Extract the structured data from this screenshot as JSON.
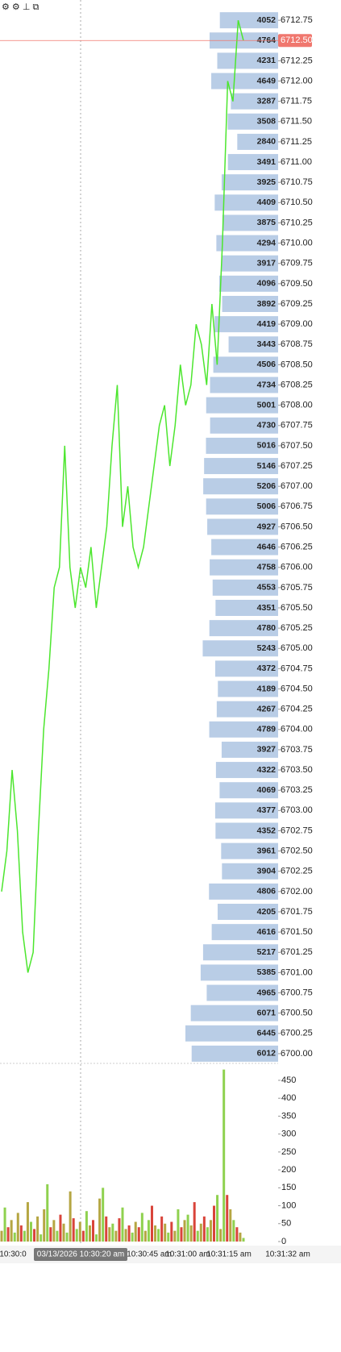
{
  "chart_data": [
    {
      "type": "price",
      "ylim": [
        6699.89,
        6713.0
      ],
      "yticks": [
        {
          "value": 6712.75,
          "label": "6712.75"
        },
        {
          "value": 6712.5,
          "label": "6712.50"
        },
        {
          "value": 6712.25,
          "label": "6712.25"
        },
        {
          "value": 6712,
          "label": "6712.00"
        },
        {
          "value": 6711.75,
          "label": "6711.75"
        },
        {
          "value": 6711.5,
          "label": "6711.50"
        },
        {
          "value": 6711.25,
          "label": "6711.25"
        },
        {
          "value": 6711,
          "label": "6711.00"
        },
        {
          "value": 6710.75,
          "label": "6710.75"
        },
        {
          "value": 6710.5,
          "label": "6710.50"
        },
        {
          "value": 6710.25,
          "label": "6710.25"
        },
        {
          "value": 6710,
          "label": "6710.00"
        },
        {
          "value": 6709.75,
          "label": "6709.75"
        },
        {
          "value": 6709.5,
          "label": "6709.50"
        },
        {
          "value": 6709.25,
          "label": "6709.25"
        },
        {
          "value": 6709,
          "label": "6709.00"
        },
        {
          "value": 6708.75,
          "label": "6708.75"
        },
        {
          "value": 6708.5,
          "label": "6708.50"
        },
        {
          "value": 6708.25,
          "label": "6708.25"
        },
        {
          "value": 6708,
          "label": "6708.00"
        },
        {
          "value": 6707.75,
          "label": "6707.75"
        },
        {
          "value": 6707.5,
          "label": "6707.50"
        },
        {
          "value": 6707.25,
          "label": "6707.25"
        },
        {
          "value": 6707,
          "label": "6707.00"
        },
        {
          "value": 6706.75,
          "label": "6706.75"
        },
        {
          "value": 6706.5,
          "label": "6706.50"
        },
        {
          "value": 6706.25,
          "label": "6706.25"
        },
        {
          "value": 6706,
          "label": "6706.00"
        },
        {
          "value": 6705.75,
          "label": "6705.75"
        },
        {
          "value": 6705.5,
          "label": "6705.50"
        },
        {
          "value": 6705.25,
          "label": "6705.25"
        },
        {
          "value": 6705,
          "label": "6705.00"
        },
        {
          "value": 6704.75,
          "label": "6704.75"
        },
        {
          "value": 6704.5,
          "label": "6704.50"
        },
        {
          "value": 6704.25,
          "label": "6704.25"
        },
        {
          "value": 6704,
          "label": "6704.00"
        },
        {
          "value": 6703.75,
          "label": "6703.75"
        },
        {
          "value": 6703.5,
          "label": "6703.50"
        },
        {
          "value": 6703.25,
          "label": "6703.25"
        },
        {
          "value": 6703,
          "label": "6703.00"
        },
        {
          "value": 6702.75,
          "label": "6702.75"
        },
        {
          "value": 6702.5,
          "label": "6702.50"
        },
        {
          "value": 6702.25,
          "label": "6702.25"
        },
        {
          "value": 6702,
          "label": "6702.00"
        },
        {
          "value": 6701.75,
          "label": "6701.75"
        },
        {
          "value": 6701.5,
          "label": "6701.50"
        },
        {
          "value": 6701.25,
          "label": "6701.25"
        },
        {
          "value": 6701,
          "label": "6701.00"
        },
        {
          "value": 6700.75,
          "label": "6700.75"
        },
        {
          "value": 6700.5,
          "label": "6700.50"
        },
        {
          "value": 6700.25,
          "label": "6700.25"
        },
        {
          "value": 6700,
          "label": "6700.00"
        }
      ],
      "profile_volumes": [
        4052,
        4764,
        4231,
        4649,
        3287,
        3508,
        2840,
        3491,
        3925,
        4409,
        3875,
        4294,
        3917,
        4096,
        3892,
        4419,
        3443,
        4506,
        4734,
        5001,
        4730,
        5016,
        5146,
        5206,
        5006,
        4927,
        4646,
        4758,
        4553,
        4351,
        4780,
        5243,
        4372,
        4189,
        4267,
        4789,
        3927,
        4322,
        4069,
        4377,
        4352,
        3961,
        3904,
        4806,
        4205,
        4616,
        5217,
        5385,
        4965,
        6071,
        6445,
        6012
      ],
      "profile_color": "#b9cde6",
      "current_price": {
        "value": 6712.5,
        "label": "6712.50"
      },
      "current_color": "#f0776e",
      "series": [
        {
          "color": "#4ce62e",
          "values": [
            6702.0,
            6702.5,
            6703.5,
            6702.75,
            6701.5,
            6701.0,
            6701.25,
            6702.75,
            6704.0,
            6704.75,
            6705.75,
            6706.0,
            6707.5,
            6706.0,
            6705.5,
            6706.0,
            6705.75,
            6706.25,
            6705.5,
            6706.0,
            6706.5,
            6707.5,
            6708.25,
            6706.5,
            6707.0,
            6706.25,
            6706.0,
            6706.25,
            6706.75,
            6707.25,
            6707.75,
            6708.0,
            6707.25,
            6707.75,
            6708.5,
            6708.0,
            6708.25,
            6709.0,
            6708.75,
            6708.25,
            6709.25,
            6708.5,
            6710.0,
            6712.0,
            6711.75,
            6712.75,
            6712.5
          ]
        }
      ]
    },
    {
      "type": "bar",
      "ylim": [
        0,
        495
      ],
      "yticks": [
        0,
        50,
        100,
        150,
        200,
        250,
        300,
        350,
        400,
        450
      ],
      "values": [
        30,
        95,
        40,
        60,
        25,
        80,
        45,
        30,
        110,
        55,
        35,
        70,
        20,
        90,
        160,
        40,
        60,
        30,
        75,
        50,
        25,
        140,
        65,
        35,
        55,
        30,
        85,
        45,
        60,
        20,
        120,
        150,
        70,
        40,
        50,
        30,
        65,
        95,
        35,
        45,
        25,
        55,
        40,
        80,
        30,
        60,
        100,
        45,
        35,
        70,
        50,
        25,
        55,
        30,
        90,
        40,
        60,
        75,
        45,
        110,
        30,
        50,
        70,
        40,
        60,
        100,
        130,
        35,
        480,
        130,
        90,
        60,
        40,
        25,
        10
      ],
      "bar_colors": [
        "#b5a642",
        "#8fd14f",
        "#d9443a",
        "#b5a642",
        "#8fd14f",
        "#b5a642",
        "#d9443a",
        "#8fd14f",
        "#b5a642",
        "#8fd14f",
        "#d9443a",
        "#b5a642",
        "#8fd14f",
        "#b5a642",
        "#8fd14f",
        "#d9443a",
        "#b5a642",
        "#8fd14f",
        "#d9443a",
        "#b5a642",
        "#8fd14f",
        "#b5a642",
        "#d9443a",
        "#8fd14f",
        "#b5a642",
        "#d9443a",
        "#8fd14f",
        "#b5a642",
        "#d9443a",
        "#8fd14f",
        "#b5a642",
        "#8fd14f",
        "#d9443a",
        "#b5a642",
        "#8fd14f",
        "#b5a642",
        "#d9443a",
        "#8fd14f",
        "#b5a642",
        "#d9443a",
        "#8fd14f",
        "#b5a642",
        "#d9443a",
        "#8fd14f",
        "#b5a642",
        "#8fd14f",
        "#d9443a",
        "#b5a642",
        "#8fd14f",
        "#d9443a",
        "#b5a642",
        "#8fd14f",
        "#d9443a",
        "#b5a642",
        "#8fd14f",
        "#d9443a",
        "#b5a642",
        "#8fd14f",
        "#b5a642",
        "#d9443a",
        "#8fd14f",
        "#b5a642",
        "#d9443a",
        "#8fd14f",
        "#b5a642",
        "#d9443a",
        "#8fd14f",
        "#b5a642",
        "#8fd14f",
        "#d9443a",
        "#b5a642",
        "#8fd14f",
        "#d9443a",
        "#b5a642",
        "#8fd14f"
      ],
      "x_labels": [
        "10:30:0",
        "03/13/2026 10:30:20 am",
        "10:30:45 am",
        "10:31:00 am",
        "10:31:15 am",
        "10:31:32 am"
      ]
    }
  ]
}
